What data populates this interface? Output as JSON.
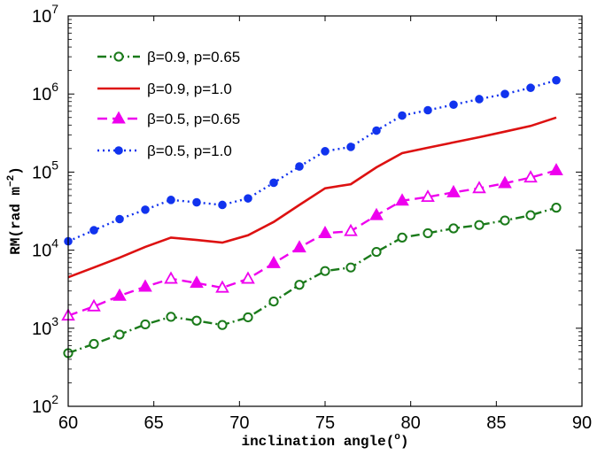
{
  "chart_data": {
    "type": "line",
    "title": "",
    "xlabel": "inclination angle(",
    "xlabel_degree": "o",
    "xlabel_close": ")",
    "ylabel": "RM(rad m",
    "ylabel_exp": "−2",
    "ylabel_close": ")",
    "xlim": [
      60,
      90
    ],
    "ylim_log10": [
      2,
      7
    ],
    "yscale": "log",
    "grid": false,
    "legend_position": "top-left",
    "x_ticks": [
      "60",
      "65",
      "70",
      "75",
      "80",
      "85",
      "90"
    ],
    "y_ticks": [
      {
        "base": "10",
        "exp": "2"
      },
      {
        "base": "10",
        "exp": "3"
      },
      {
        "base": "10",
        "exp": "4"
      },
      {
        "base": "10",
        "exp": "5"
      },
      {
        "base": "10",
        "exp": "6"
      },
      {
        "base": "10",
        "exp": "7"
      }
    ],
    "series": [
      {
        "name": "β=0.9, p=0.65",
        "color": "#1a7a1a",
        "dash": "dashdot",
        "marker": "open-circle",
        "x": [
          60,
          61.5,
          63,
          64.5,
          66,
          67.5,
          69,
          70.5,
          72,
          73.5,
          75,
          76.5,
          78,
          79.5,
          81,
          82.5,
          84,
          85.5,
          87,
          88.5
        ],
        "y": [
          480,
          630,
          830,
          1120,
          1400,
          1250,
          1100,
          1380,
          2200,
          3600,
          5400,
          6000,
          9500,
          14500,
          16500,
          19000,
          21000,
          24000,
          28000,
          35000
        ]
      },
      {
        "name": "β=0.9, p=1.0",
        "color": "#dd1111",
        "dash": "solid",
        "marker": "none",
        "x": [
          60,
          61.5,
          63,
          64.5,
          66,
          67.5,
          69,
          70.5,
          72,
          73.5,
          75,
          76.5,
          78,
          79.5,
          81,
          82.5,
          84,
          85.5,
          87,
          88.5
        ],
        "y": [
          4500,
          6000,
          8000,
          11000,
          14500,
          13500,
          12500,
          15500,
          23000,
          38000,
          62000,
          70000,
          115000,
          175000,
          205000,
          240000,
          280000,
          330000,
          390000,
          500000
        ]
      },
      {
        "name": "β=0.5, p=0.65",
        "color": "#ee00ee",
        "dash": "dashed",
        "marker": "triangle",
        "x": [
          60,
          61.5,
          63,
          64.5,
          66,
          67.5,
          69,
          70.5,
          72,
          73.5,
          75,
          76.5,
          78,
          79.5,
          81,
          82.5,
          84,
          85.5,
          87,
          88.5
        ],
        "y": [
          1450,
          1900,
          2600,
          3400,
          4300,
          3800,
          3300,
          4300,
          6800,
          10800,
          16500,
          17500,
          28000,
          43000,
          48000,
          55000,
          62000,
          72000,
          85000,
          105000
        ],
        "filled": [
          false,
          false,
          true,
          true,
          false,
          true,
          false,
          false,
          true,
          true,
          true,
          false,
          true,
          true,
          false,
          true,
          false,
          true,
          false,
          true
        ]
      },
      {
        "name": "β=0.5, p=1.0",
        "color": "#1133ee",
        "dash": "dotted",
        "marker": "filled-circle",
        "x": [
          60,
          61.5,
          63,
          64.5,
          66,
          67.5,
          69,
          70.5,
          72,
          73.5,
          75,
          76.5,
          78,
          79.5,
          81,
          82.5,
          84,
          85.5,
          87,
          88.5
        ],
        "y": [
          13000,
          18000,
          25000,
          33000,
          44000,
          41000,
          38000,
          46000,
          73000,
          118000,
          185000,
          210000,
          340000,
          530000,
          620000,
          730000,
          860000,
          1000000,
          1200000,
          1500000
        ]
      }
    ]
  }
}
